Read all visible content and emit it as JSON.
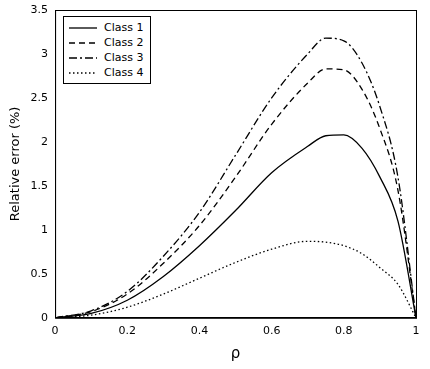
{
  "chart_data": {
    "type": "line",
    "x_label": "ρ",
    "y_label": "Relative error (%)",
    "x": [
      0,
      0.1,
      0.2,
      0.3,
      0.4,
      0.5,
      0.6,
      0.7,
      0.75,
      0.8,
      0.85,
      0.9,
      0.95,
      1
    ],
    "series": [
      {
        "name": "Class 1",
        "color": "#000000",
        "line_style": "solid",
        "values": [
          0,
          0.05,
          0.2,
          0.47,
          0.82,
          1.22,
          1.65,
          1.95,
          2.07,
          2.08,
          1.93,
          1.6,
          1.1,
          0
        ]
      },
      {
        "name": "Class 2",
        "color": "#000000",
        "line_style": "dashed",
        "values": [
          0,
          0.07,
          0.27,
          0.62,
          1.05,
          1.6,
          2.2,
          2.67,
          2.83,
          2.82,
          2.6,
          2.15,
          1.45,
          0
        ]
      },
      {
        "name": "Class 3",
        "color": "#000000",
        "line_style": "dashdot",
        "values": [
          0,
          0.08,
          0.3,
          0.7,
          1.2,
          1.85,
          2.5,
          3.0,
          3.18,
          3.15,
          2.9,
          2.4,
          1.6,
          0
        ]
      },
      {
        "name": "Class 4",
        "color": "#000000",
        "line_style": "dotted",
        "values": [
          0,
          0.03,
          0.12,
          0.27,
          0.45,
          0.63,
          0.78,
          0.87,
          0.86,
          0.82,
          0.73,
          0.57,
          0.38,
          0
        ]
      }
    ],
    "xlim": [
      0,
      1
    ],
    "xticks": [
      0,
      0.2,
      0.4,
      0.6,
      0.8,
      1
    ],
    "ylim": [
      0,
      3.5
    ],
    "yticks": [
      0,
      0.5,
      1,
      1.5,
      2,
      2.5,
      3,
      3.5
    ],
    "grid": false,
    "legend": "upper left"
  }
}
